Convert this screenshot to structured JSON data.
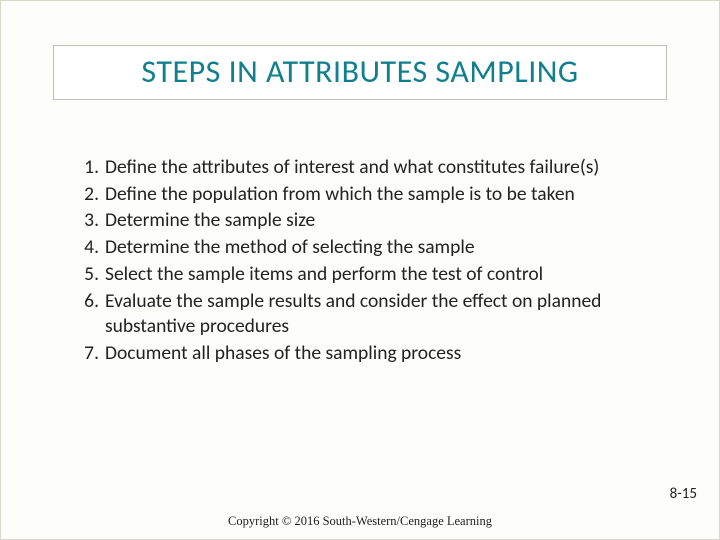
{
  "title": {
    "text": "STEPS IN ATTRIBUTES SAMPLING",
    "color": "#127f8e",
    "fontsize": 32
  },
  "steps": [
    "Define the attributes of interest and what constitutes failure(s)",
    "Define the population from which the sample is to be taken",
    "Determine the sample size",
    "Determine the method of selecting the sample",
    "Select the sample items and perform the test of control",
    "Evaluate the sample results and consider the effect on planned substantive procedures",
    "Document all phases of the sampling process"
  ],
  "footer": {
    "copyright": "Copyright © 2016 South-Western/Cengage Learning",
    "page_number": "8-15"
  },
  "styling": {
    "background_color": "#fdfdfa",
    "body_text_color": "#222222",
    "body_fontsize": 19.5,
    "title_border_color": "#bfbfb6"
  }
}
